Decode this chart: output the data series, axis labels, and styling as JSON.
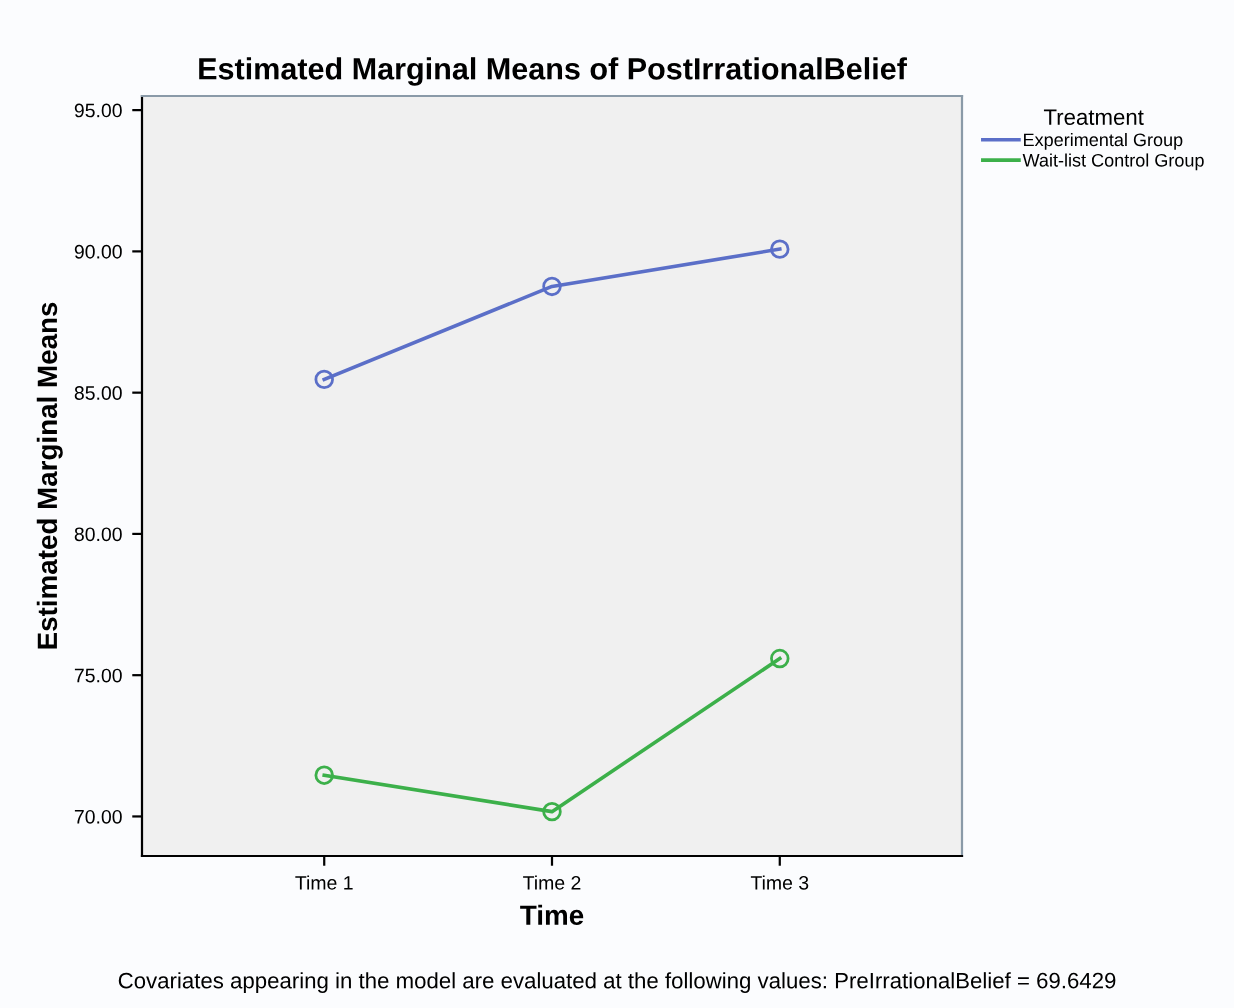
{
  "chart_data": {
    "type": "line",
    "title": "Estimated Marginal Means of PostIrrationalBelief",
    "xlabel": "Time",
    "ylabel": "Estimated Marginal Means",
    "legend_title": "Treatment",
    "categories": [
      "Time 1",
      "Time 2",
      "Time 3"
    ],
    "series": [
      {
        "name": "Experimental Group",
        "color": "#5b6fc8",
        "values": [
          85.47,
          88.76,
          90.08
        ]
      },
      {
        "name": "Wait-list Control Group",
        "color": "#3cb04a",
        "values": [
          71.46,
          70.17,
          75.59
        ]
      }
    ],
    "ylim": [
      68.6,
      95.5
    ],
    "yticks": [
      {
        "value": 70,
        "label": "70.00"
      },
      {
        "value": 75,
        "label": "75.00"
      },
      {
        "value": 80,
        "label": "80.00"
      },
      {
        "value": 85,
        "label": "85.00"
      },
      {
        "value": 90,
        "label": "90.00"
      },
      {
        "value": 95,
        "label": "95.00"
      }
    ],
    "marker": "circle",
    "line_style": "solid",
    "grid": false,
    "legend": "top right",
    "annotations": [
      "Covariates appearing in the model are evaluated at the following values: PreIrrationalBelief = 69.6429"
    ]
  }
}
